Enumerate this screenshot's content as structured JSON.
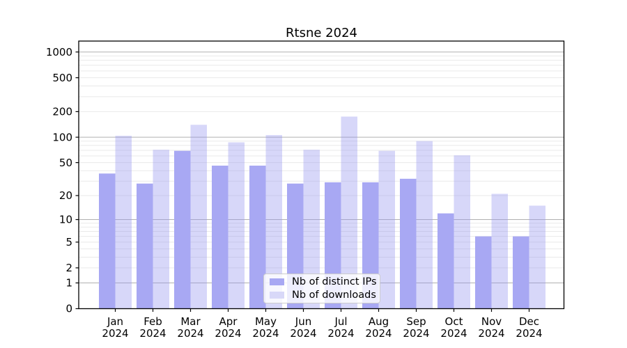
{
  "title": "Rtsne 2024",
  "colors": {
    "bar_distinct_ips": "#a8a8f3",
    "bar_downloads": "#d8d8f8",
    "bar_downloads_rgba": "rgba(150,150,238,0.38)",
    "grid_major": "#b0b0b0",
    "grid_minor": "#e9e9e9",
    "axis": "#000000",
    "background": "#ffffff",
    "text": "#000000"
  },
  "chart_data": {
    "type": "bar",
    "title": "Rtsne 2024",
    "categories": [
      "Jan",
      "Feb",
      "Mar",
      "Apr",
      "May",
      "Jun",
      "Jul",
      "Aug",
      "Sep",
      "Oct",
      "Nov",
      "Dec"
    ],
    "year": "2024",
    "series": [
      {
        "name": "Nb of distinct IPs",
        "values": [
          37,
          28,
          69,
          46,
          46,
          28,
          29,
          29,
          32,
          12,
          6,
          6
        ]
      },
      {
        "name": "Nb of downloads",
        "values": [
          104,
          71,
          140,
          87,
          106,
          71,
          175,
          69,
          90,
          61,
          21,
          15
        ]
      }
    ],
    "xlabel": "",
    "ylabel": "",
    "yscale": "symlog (log10 of 1+value, linear 0-1)",
    "yticks": [
      1000,
      500,
      200,
      100,
      50,
      20,
      10,
      5,
      2,
      1,
      0
    ],
    "ylim": [
      0,
      1350
    ],
    "grid": "horizontal major gridlines at powers of 10, faint minor gridlines at 2-9 multiples",
    "legend_position": "lower center inside plot area"
  }
}
